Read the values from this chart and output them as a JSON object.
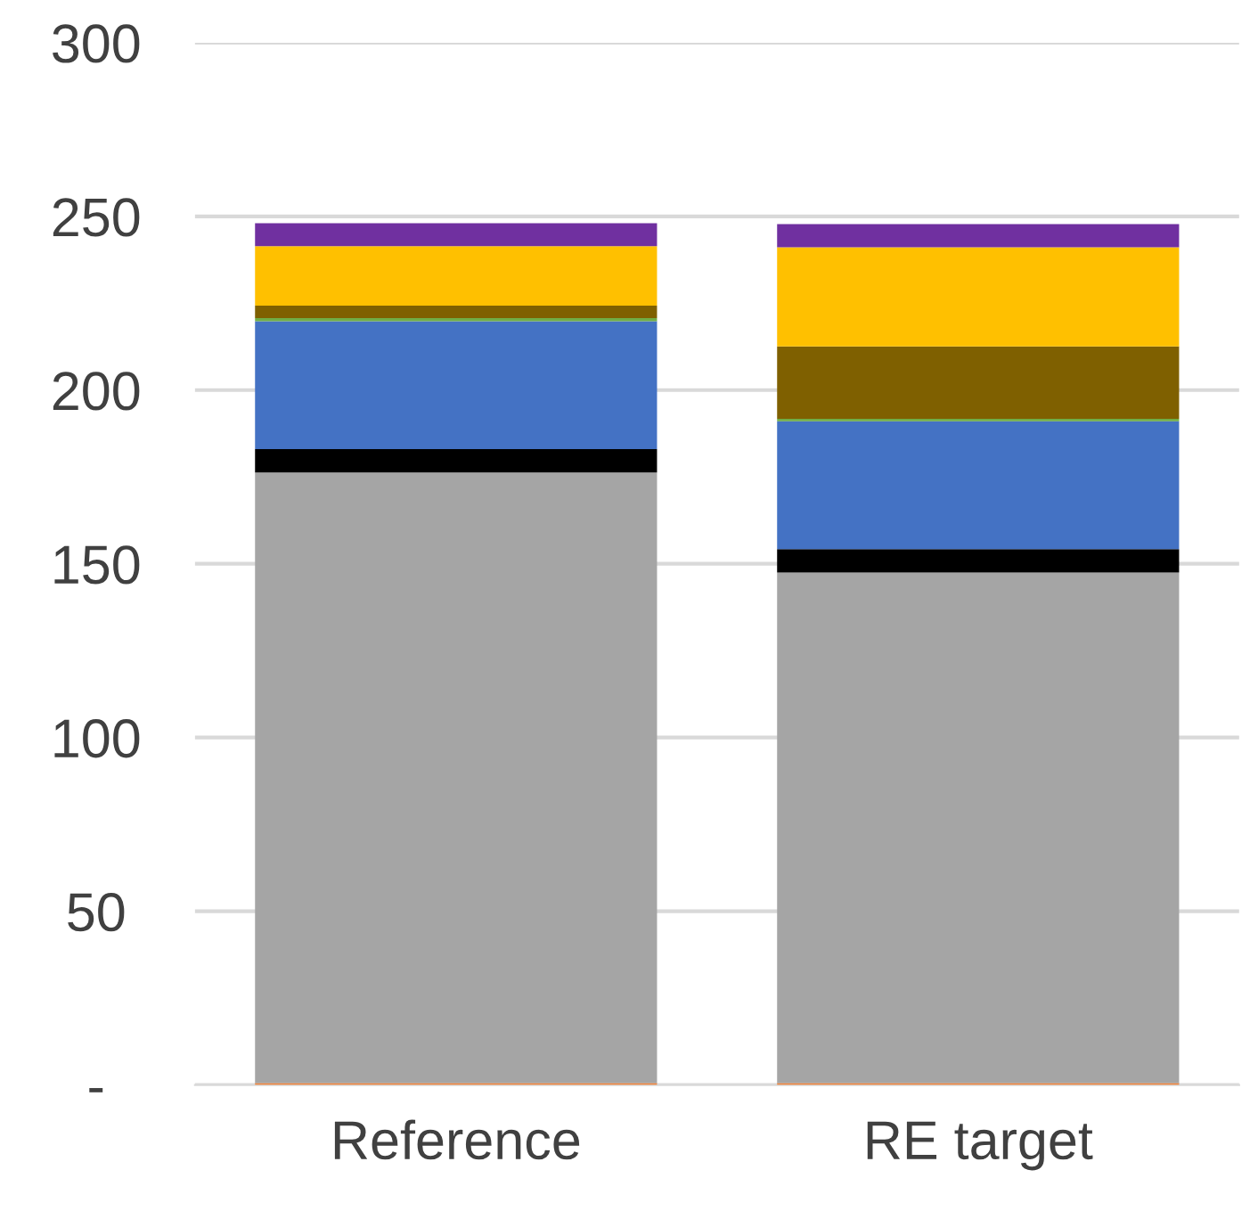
{
  "chart_data": {
    "type": "bar",
    "stacked": true,
    "categories": [
      "Reference",
      "RE target"
    ],
    "series": [
      {
        "color": "#ed7d31",
        "values": [
          0.5,
          0.5
        ]
      },
      {
        "color": "#a5a5a5",
        "values": [
          175.8,
          147.0
        ]
      },
      {
        "color": "#000000",
        "values": [
          6.7,
          6.7
        ]
      },
      {
        "color": "#4472c4",
        "values": [
          36.8,
          36.8
        ]
      },
      {
        "color": "#70ad47",
        "values": [
          0.9,
          0.7
        ]
      },
      {
        "color": "#7f6000",
        "values": [
          3.6,
          20.9
        ]
      },
      {
        "color": "#ffc000",
        "values": [
          17.1,
          28.5
        ]
      },
      {
        "color": "#7030a0",
        "values": [
          6.6,
          6.7
        ]
      }
    ],
    "ylim": [
      0,
      300
    ],
    "yticks": [
      {
        "value": 0,
        "label": "-"
      },
      50,
      100,
      150,
      200,
      250,
      300
    ],
    "grid": "y",
    "legend": false
  }
}
